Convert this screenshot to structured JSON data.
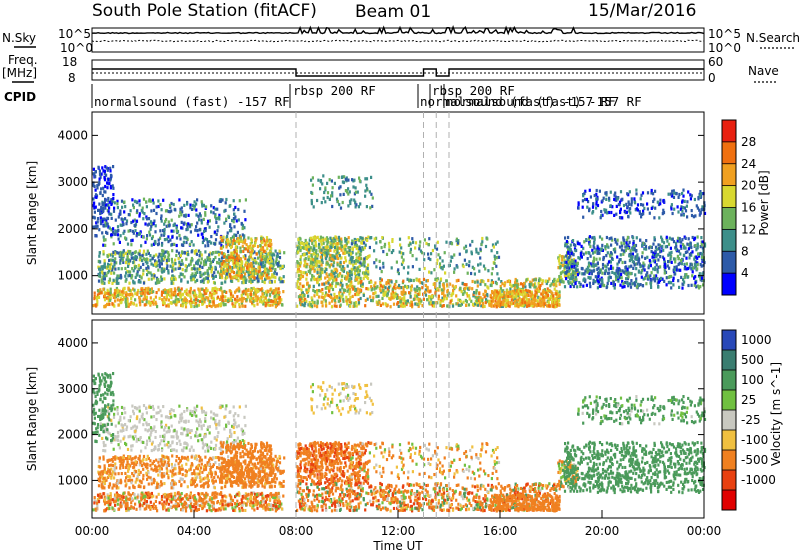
{
  "header": {
    "station_title": "South Pole Station (fitACF)",
    "beam_label": "Beam 01",
    "date_label": "15/Mar/2016"
  },
  "strip": {
    "nsky_label": "N.Sky",
    "nsky_ticks": [
      "10^5",
      "10^0"
    ],
    "nsearch_label": "N.Search",
    "nsearch_ticks": [
      "10^5",
      "10^0"
    ],
    "freq_label": "Freq.",
    "freq_unit": "[MHz]",
    "freq_ticks": [
      "18",
      "8"
    ],
    "nave_label": "Nave",
    "nave_ticks": [
      "60",
      "0"
    ],
    "cpid_label": "CPID",
    "cpid_segments": [
      {
        "label": "normalsound (fast) -157 RF",
        "start": 0.0
      },
      {
        "label": "rbsp 200 RF",
        "start": 8.0
      },
      {
        "label": "normalsound (fast) -157 RF",
        "start": 13.0
      },
      {
        "label": "rbsp 200 RF",
        "start": 13.5
      },
      {
        "label": "normalsound (fast) -157 RF",
        "start": 14.0
      }
    ]
  },
  "chart_data": [
    {
      "type": "heatmap",
      "parameter": "power",
      "ylabel": "Slant Range [km]",
      "xlim": [
        "00:00",
        "24:00"
      ],
      "ylim": [
        180,
        4500
      ],
      "yticks": [
        1000,
        2000,
        3000,
        4000
      ],
      "colorbar_label": "Power [dB]",
      "colorbar_ticks": [
        4,
        8,
        12,
        16,
        20,
        24,
        28
      ],
      "colorbar_colors": [
        "#0000ff",
        "#2d5aa8",
        "#3d8f8a",
        "#6cb25c",
        "#d8d830",
        "#f0a020",
        "#f07010",
        "#e82010"
      ]
    },
    {
      "type": "heatmap",
      "parameter": "velocity",
      "ylabel": "Slant Range [km]",
      "xlabel": "Time UT",
      "xlim": [
        "00:00",
        "24:00"
      ],
      "ylim": [
        180,
        4500
      ],
      "yticks": [
        1000,
        2000,
        3000,
        4000
      ],
      "xticks": [
        "00:00",
        "04:00",
        "08:00",
        "12:00",
        "16:00",
        "20:00",
        "00:00"
      ],
      "colorbar_label": "Velocity [m s^-1]",
      "colorbar_ticks": [
        1000,
        500,
        100,
        25,
        -25,
        -100,
        -500,
        -1000
      ],
      "colorbar_colors": [
        "#2848b8",
        "#3a7d70",
        "#4a9a5a",
        "#70c040",
        "#c8c8c0",
        "#f0c040",
        "#f08020",
        "#e84010",
        "#e00000"
      ]
    }
  ]
}
